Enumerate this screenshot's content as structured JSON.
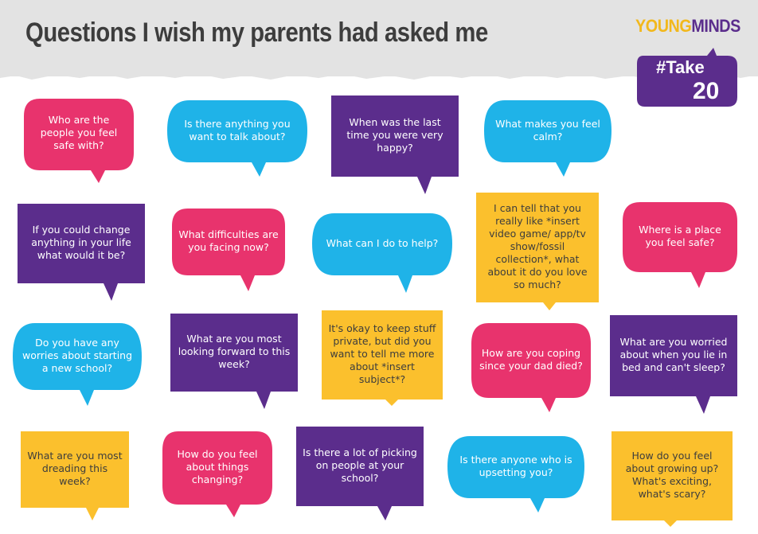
{
  "title": "Questions I wish my parents had asked me",
  "logo": {
    "part1": "YOUNG",
    "part2": "MINDS"
  },
  "badge": {
    "line1": "#Take",
    "line2": "20"
  },
  "colors": {
    "pink": "#e8336d",
    "blue": "#1fb3e8",
    "purple": "#5b2d8c",
    "yellow": "#fbc02d",
    "header": "#e3e3e3",
    "title": "#3d3d3d"
  },
  "questions": [
    "Who are the people you feel safe with?",
    "Is there anything you want to talk about?",
    "When was the last time you were very happy?",
    "What makes you feel calm?",
    "If you could change anything in your life what would it be?",
    "What difficulties are you facing now?",
    "What can I do to help?",
    "I can tell that you really like *insert video game/ app/tv show/fossil collection*, what about it do you love so much?",
    "Where is a place you feel safe?",
    "Do you have any worries about starting a new school?",
    "What are you most looking forward to this week?",
    "It's okay to keep stuff private, but did you want to tell me more about *insert subject*?",
    "How are you coping since your dad died?",
    "What are you worried about when you lie in bed and can't sleep?",
    "What are you most dreading this week?",
    "How do you feel about things changing?",
    "Is there a lot of picking on people at your school?",
    "Is there anyone who is upsetting you?",
    "How do you feel about growing up? What's exciting, what's scary?"
  ]
}
